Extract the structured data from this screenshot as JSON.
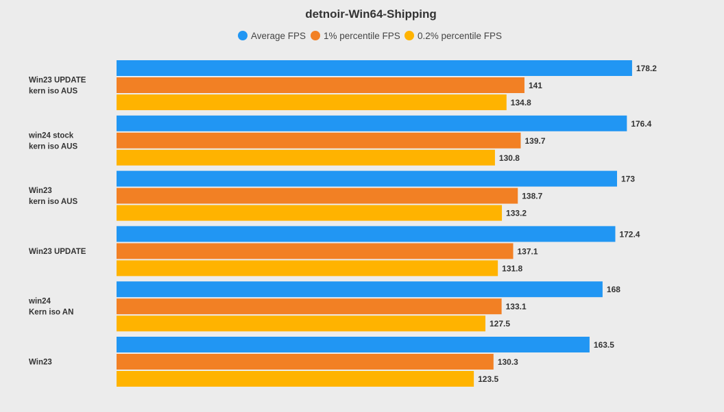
{
  "chart_data": {
    "type": "bar",
    "orientation": "horizontal",
    "title": "detnoir-Win64-Shipping",
    "legend_position": "top",
    "grid": false,
    "xlim": [
      0,
      180
    ],
    "categories": [
      [
        "Win23 UPDATE",
        "kern iso AUS"
      ],
      [
        "win24 stock",
        "kern iso AUS"
      ],
      [
        "Win23",
        "kern iso AUS"
      ],
      [
        "Win23 UPDATE"
      ],
      [
        "win24",
        "Kern iso AN"
      ],
      [
        "Win23"
      ]
    ],
    "series": [
      {
        "name": "Average FPS",
        "color": "#2196f3",
        "values": [
          178.2,
          176.4,
          173,
          172.4,
          168,
          163.5
        ]
      },
      {
        "name": "1% percentile FPS",
        "color": "#f28024",
        "values": [
          141,
          139.7,
          138.7,
          137.1,
          133.1,
          130.3
        ]
      },
      {
        "name": "0.2% percentile FPS",
        "color": "#ffb300",
        "values": [
          134.8,
          130.8,
          133.2,
          131.8,
          127.5,
          123.5
        ]
      }
    ]
  }
}
